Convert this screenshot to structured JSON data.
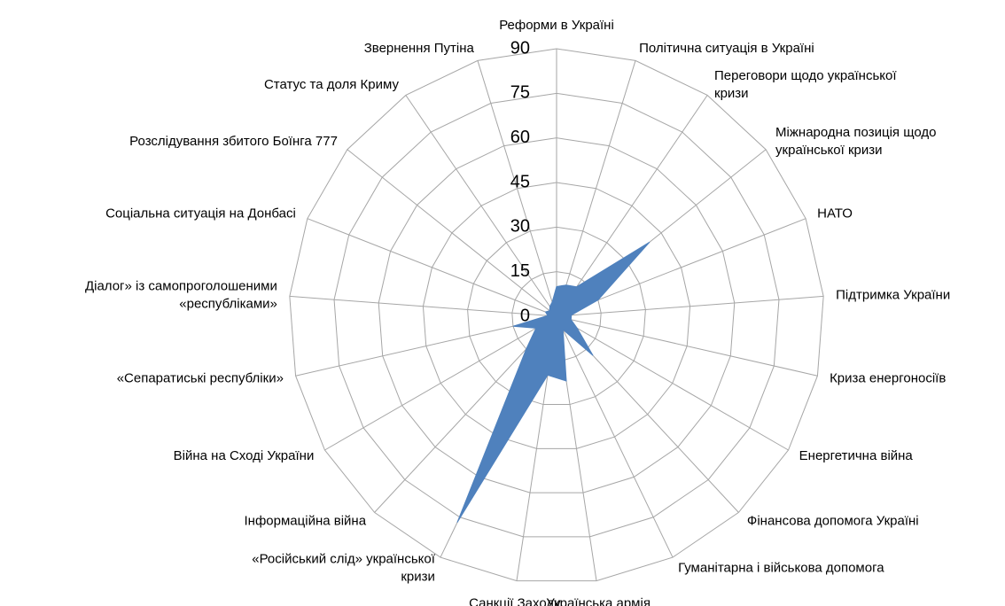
{
  "chart_data": {
    "type": "radar",
    "categories": [
      "Реформи в  Україні",
      "Політична ситуація в Україні",
      "Переговори щодо української\nкризи",
      "Міжнародна позиція щодо\nукраїнської кризи",
      "НАТО",
      "Підтримка України",
      "Криза енергоносіїв",
      "Енергетична війна",
      "Фінансова допомога Україні",
      "Гуманітарна і військова допомога",
      "Українська армія",
      "Санкції Заходу",
      "«Російський слід» української\nкризи",
      "Інформаційна війна",
      "Війна на Сході України",
      "«Сепаратиські республіки»",
      "Діалог» із самопроголошеними\n«республіками»",
      "Соціальна ситуація на Донбасі",
      "Розслідування збитого Боїнга 777",
      "Статус та доля Криму",
      "Звернення Путіна"
    ],
    "values": [
      10,
      11,
      12,
      40,
      15,
      5,
      5,
      8,
      18,
      5,
      22,
      20,
      77,
      15,
      8,
      15,
      3,
      4,
      3,
      4,
      5
    ],
    "color": "#4f81bd",
    "ylim": [
      0,
      90
    ],
    "yticks": [
      0,
      15,
      30,
      45,
      60,
      75,
      90
    ],
    "grid": true
  }
}
